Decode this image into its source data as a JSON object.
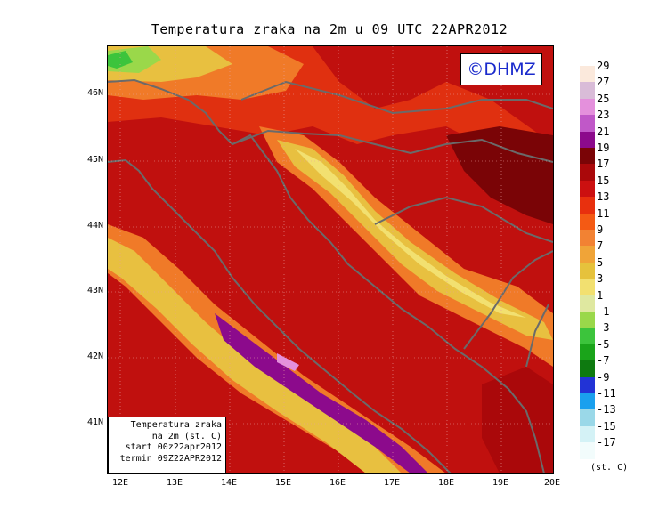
{
  "title": "Temperatura zraka na 2m u 09 UTC 22APR2012",
  "logo": "©DHMZ",
  "info": {
    "line1": "Temperatura zraka",
    "line2": "na 2m (st. C)",
    "line3": "start 00z22apr2012",
    "line4": "termin 09Z22APR2012"
  },
  "lat_labels": [
    "46N",
    "45N",
    "44N",
    "43N",
    "42N",
    "41N"
  ],
  "lon_labels": [
    "12E",
    "13E",
    "14E",
    "15E",
    "16E",
    "17E",
    "18E",
    "19E",
    "20E"
  ],
  "legend": {
    "unit": "(st. C)",
    "levels": [
      "29",
      "27",
      "25",
      "23",
      "21",
      "19",
      "17",
      "15",
      "13",
      "11",
      "9",
      "7",
      "5",
      "3",
      "1",
      "-1",
      "-3",
      "-5",
      "-7",
      "-9",
      "-11",
      "-13",
      "-15",
      "-17"
    ],
    "colors": [
      "#fbe9dc",
      "#d9bcd8",
      "#e490dc",
      "#c058c8",
      "#8c0a8c",
      "#7a0406",
      "#aa080a",
      "#cc1010",
      "#e8300e",
      "#f45a14",
      "#f28233",
      "#f0a438",
      "#e6c23c",
      "#f2e070",
      "#dfe8a0",
      "#9ad84a",
      "#3cc43c",
      "#1aa41a",
      "#0e7a10",
      "#2233d6",
      "#1aa0ee",
      "#9ad8e8",
      "#d4f2f6",
      "#f2fcfc"
    ]
  }
}
